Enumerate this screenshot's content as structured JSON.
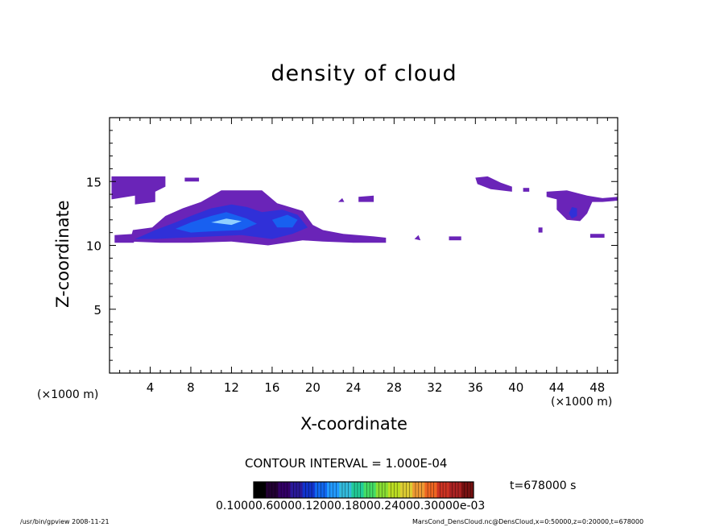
{
  "chart_data": {
    "type": "heatmap",
    "title": "density of cloud",
    "xlabel": "X-coordinate",
    "ylabel": "Z-coordinate",
    "x_unit": "(×1000 m)",
    "xlim": [
      0,
      50
    ],
    "ylim": [
      0,
      20
    ],
    "x_ticks": [
      4,
      8,
      12,
      16,
      20,
      24,
      28,
      32,
      36,
      40,
      44,
      48
    ],
    "y_ticks": [
      5,
      10,
      15
    ],
    "contour_interval": "CONTOUR INTERVAL = 1.000E-04",
    "time_label": "t=678000 s",
    "colorbar_labels": "0.10000.60000.12000.18000.24000.30000e-03",
    "colorbar_colors": [
      "#000000",
      "#220033",
      "#330066",
      "#2a1a99",
      "#1133cc",
      "#1166ee",
      "#2299ff",
      "#33bbdd",
      "#22cc99",
      "#44dd66",
      "#88dd33",
      "#bbdd22",
      "#ddcc33",
      "#ee9933",
      "#ee6622",
      "#cc3322",
      "#aa2222",
      "#771111"
    ],
    "colors": {
      "low": "#6a24b8",
      "mid": "#3030d8",
      "high": "#1860f0",
      "peak": "#90d0ff"
    },
    "regions": [
      {
        "level": "low",
        "points": [
          [
            0.2,
            14.6
          ],
          [
            0.2,
            15.4
          ],
          [
            5.5,
            15.4
          ],
          [
            5.5,
            14.6
          ],
          [
            4.5,
            14.2
          ],
          [
            4.5,
            13.4
          ],
          [
            2.5,
            13.2
          ],
          [
            2.5,
            13.9
          ],
          [
            0.2,
            13.6
          ]
        ]
      },
      {
        "level": "low",
        "points": [
          [
            7.4,
            15.0
          ],
          [
            7.4,
            15.3
          ],
          [
            8.8,
            15.3
          ],
          [
            8.8,
            15.0
          ]
        ]
      },
      {
        "level": "low",
        "points": [
          [
            0.5,
            10.2
          ],
          [
            0.5,
            10.8
          ],
          [
            2.4,
            10.9
          ],
          [
            2.4,
            10.2
          ]
        ]
      },
      {
        "level": "low",
        "points": [
          [
            2.0,
            10.3
          ],
          [
            2.3,
            11.2
          ],
          [
            4.2,
            11.4
          ],
          [
            5.5,
            12.3
          ],
          [
            7.2,
            12.9
          ],
          [
            9.0,
            13.4
          ],
          [
            11.0,
            14.3
          ],
          [
            15.0,
            14.3
          ],
          [
            16.5,
            13.3
          ],
          [
            19.0,
            12.7
          ],
          [
            20.0,
            11.6
          ],
          [
            21.0,
            11.2
          ],
          [
            23.0,
            10.9
          ],
          [
            26.0,
            10.7
          ],
          [
            27.2,
            10.6
          ],
          [
            27.2,
            10.2
          ],
          [
            24.0,
            10.2
          ],
          [
            21.0,
            10.3
          ],
          [
            19.0,
            10.4
          ],
          [
            15.6,
            10.0
          ],
          [
            12.0,
            10.3
          ],
          [
            8.0,
            10.2
          ],
          [
            5.0,
            10.2
          ],
          [
            2.0,
            10.3
          ]
        ]
      },
      {
        "level": "mid",
        "points": [
          [
            2.5,
            10.5
          ],
          [
            4.5,
            11.2
          ],
          [
            6.5,
            11.8
          ],
          [
            8.0,
            12.3
          ],
          [
            10.0,
            12.9
          ],
          [
            12.0,
            13.2
          ],
          [
            13.5,
            13.0
          ],
          [
            15.0,
            12.6
          ],
          [
            17.0,
            12.8
          ],
          [
            18.5,
            12.4
          ],
          [
            19.5,
            11.4
          ],
          [
            18.0,
            10.9
          ],
          [
            16.0,
            10.5
          ],
          [
            13.0,
            10.8
          ],
          [
            10.0,
            10.7
          ],
          [
            7.0,
            10.6
          ],
          [
            4.5,
            10.5
          ]
        ]
      },
      {
        "level": "high",
        "points": [
          [
            6.5,
            11.3
          ],
          [
            8.0,
            11.8
          ],
          [
            10.0,
            12.3
          ],
          [
            11.5,
            12.6
          ],
          [
            13.5,
            12.1
          ],
          [
            14.5,
            11.7
          ],
          [
            13.0,
            11.2
          ],
          [
            10.0,
            11.1
          ],
          [
            8.0,
            11.0
          ]
        ]
      },
      {
        "level": "high",
        "points": [
          [
            16.0,
            12.0
          ],
          [
            17.5,
            12.4
          ],
          [
            18.5,
            12.0
          ],
          [
            18.0,
            11.4
          ],
          [
            16.5,
            11.4
          ]
        ]
      },
      {
        "level": "peak",
        "points": [
          [
            10.0,
            11.8
          ],
          [
            11.5,
            12.1
          ],
          [
            13.0,
            11.9
          ],
          [
            12.0,
            11.6
          ]
        ]
      },
      {
        "level": "low",
        "points": [
          [
            30.0,
            10.5
          ],
          [
            30.4,
            10.8
          ],
          [
            30.6,
            10.4
          ]
        ]
      },
      {
        "level": "low",
        "points": [
          [
            33.4,
            10.4
          ],
          [
            33.4,
            10.7
          ],
          [
            34.6,
            10.7
          ],
          [
            34.6,
            10.4
          ]
        ]
      },
      {
        "level": "low",
        "points": [
          [
            24.5,
            13.4
          ],
          [
            24.5,
            13.8
          ],
          [
            26.0,
            13.9
          ],
          [
            26.0,
            13.4
          ]
        ]
      },
      {
        "level": "low",
        "points": [
          [
            22.5,
            13.4
          ],
          [
            22.9,
            13.7
          ],
          [
            23.1,
            13.4
          ]
        ]
      },
      {
        "level": "low",
        "points": [
          [
            36.0,
            15.3
          ],
          [
            37.2,
            15.4
          ],
          [
            38.5,
            14.9
          ],
          [
            39.6,
            14.6
          ],
          [
            39.6,
            14.2
          ],
          [
            37.5,
            14.4
          ],
          [
            36.2,
            14.8
          ]
        ]
      },
      {
        "level": "low",
        "points": [
          [
            40.7,
            14.2
          ],
          [
            40.7,
            14.5
          ],
          [
            41.3,
            14.5
          ],
          [
            41.3,
            14.2
          ]
        ]
      },
      {
        "level": "low",
        "points": [
          [
            43.0,
            13.8
          ],
          [
            43.0,
            14.2
          ],
          [
            45.0,
            14.3
          ],
          [
            46.0,
            14.1
          ],
          [
            47.0,
            13.9
          ],
          [
            48.5,
            13.7
          ],
          [
            50.0,
            13.8
          ],
          [
            50.0,
            13.5
          ],
          [
            48.5,
            13.4
          ],
          [
            47.5,
            13.4
          ],
          [
            47.0,
            12.5
          ],
          [
            46.3,
            11.9
          ],
          [
            45.0,
            12.0
          ],
          [
            44.0,
            12.8
          ],
          [
            44.0,
            13.6
          ]
        ]
      },
      {
        "level": "mid",
        "points": [
          [
            45.2,
            12.5
          ],
          [
            45.5,
            13.0
          ],
          [
            46.0,
            12.9
          ],
          [
            46.0,
            12.3
          ],
          [
            45.5,
            12.1
          ]
        ]
      },
      {
        "level": "low",
        "points": [
          [
            47.3,
            10.6
          ],
          [
            47.3,
            10.9
          ],
          [
            48.7,
            10.9
          ],
          [
            48.7,
            10.6
          ]
        ]
      },
      {
        "level": "low",
        "points": [
          [
            42.2,
            11.0
          ],
          [
            42.2,
            11.4
          ],
          [
            42.6,
            11.4
          ],
          [
            42.6,
            11.0
          ]
        ]
      }
    ]
  },
  "footer": {
    "left": "/usr/bin/gpview 2008-11-21",
    "right": "MarsCond_DensCloud.nc@DensCloud,x=0:50000,z=0:20000,t=678000"
  }
}
